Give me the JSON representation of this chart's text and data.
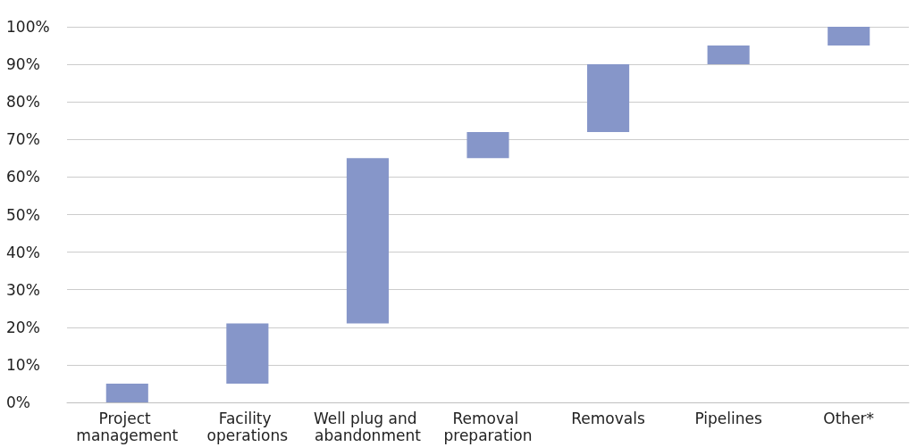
{
  "chart_data": {
    "type": "bar",
    "categories": [
      "Project management",
      "Facility operations",
      "Well plug and abandonment",
      "Removal preparation",
      "Removals",
      "Pipelines",
      "Other*"
    ],
    "values": [
      5,
      16,
      44,
      7,
      18,
      5,
      5
    ],
    "base": [
      0,
      5,
      21,
      65,
      72,
      90,
      95
    ],
    "color": "#8696c9",
    "ylim": [
      0,
      100
    ],
    "yticks": [
      {
        "value": 0,
        "label": "0%"
      },
      {
        "value": 10,
        "label": "10%"
      },
      {
        "value": 20,
        "label": "20%"
      },
      {
        "value": 30,
        "label": "30%"
      },
      {
        "value": 40,
        "label": "40%"
      },
      {
        "value": 50,
        "label": "50%"
      },
      {
        "value": 60,
        "label": "60%"
      },
      {
        "value": 70,
        "label": "70%"
      },
      {
        "value": 80,
        "label": "80%"
      },
      {
        "value": 90,
        "label": "90%"
      },
      {
        "value": 100,
        "label": "100%"
      }
    ],
    "grid": "y"
  }
}
